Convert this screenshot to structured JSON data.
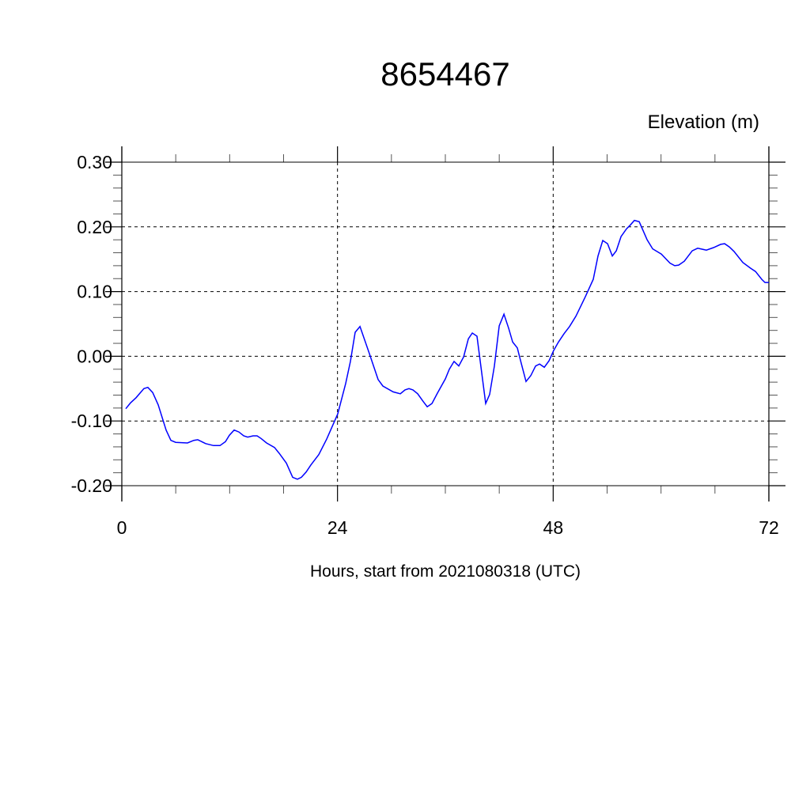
{
  "chart_data": {
    "type": "line",
    "title": "8654467",
    "ylabel": "Elevation (m)",
    "xlabel": "Hours, start from 2021080318 (UTC)",
    "xlim": [
      0,
      72
    ],
    "ylim": [
      -0.2,
      0.3
    ],
    "x_ticks": [
      0,
      24,
      48,
      72
    ],
    "x_tick_labels": [
      "0",
      "24",
      "48",
      "72"
    ],
    "x_minor_step": 6,
    "y_ticks": [
      0.3,
      0.2,
      0.1,
      0.0,
      -0.1,
      -0.2
    ],
    "y_tick_labels": [
      "0.30",
      "0.20",
      "0.10",
      "0.00",
      "-0.10",
      "-0.20"
    ],
    "y_minor_step": 0.02,
    "grid": true,
    "line_color": "#0000ff",
    "series": [
      {
        "name": "Elevation",
        "x": [
          0.44,
          0.97,
          1.58,
          2.46,
          2.9,
          3.43,
          4.05,
          4.93,
          5.46,
          5.99,
          7.31,
          8.01,
          8.45,
          9.33,
          10.21,
          10.92,
          11.53,
          11.97,
          12.5,
          13.03,
          13.56,
          14.0,
          14.61,
          15.05,
          15.49,
          16.11,
          16.99,
          17.52,
          18.31,
          19.01,
          19.54,
          19.98,
          20.51,
          21.04,
          21.92,
          22.8,
          24.03,
          24.91,
          25.44,
          25.97,
          26.5,
          27.55,
          28.52,
          29.05,
          30.19,
          30.99,
          31.51,
          31.95,
          32.39,
          32.92,
          33.54,
          33.98,
          34.51,
          35.12,
          36.0,
          36.44,
          36.97,
          37.5,
          38.03,
          38.56,
          39.0,
          39.52,
          40.49,
          40.93,
          41.46,
          41.99,
          42.52,
          43.05,
          43.49,
          44.01,
          44.45,
          44.98,
          45.51,
          46.04,
          46.48,
          47.01,
          47.54,
          48.06,
          48.59,
          49.21,
          49.82,
          50.53,
          51.58,
          52.46,
          52.99,
          53.52,
          54.05,
          54.58,
          55.02,
          55.55,
          56.16,
          56.6,
          57.04,
          57.57,
          58.45,
          59.07,
          60.04,
          61.0,
          61.53,
          61.97,
          62.59,
          63.47,
          64.08,
          65.05,
          65.85,
          66.64,
          67.08,
          67.61,
          68.13,
          69.1,
          69.98,
          70.51,
          71.21,
          71.57,
          72.0
        ],
        "y": [
          -0.081,
          -0.072,
          -0.064,
          -0.05,
          -0.048,
          -0.056,
          -0.075,
          -0.114,
          -0.13,
          -0.133,
          -0.134,
          -0.13,
          -0.129,
          -0.135,
          -0.138,
          -0.138,
          -0.132,
          -0.122,
          -0.114,
          -0.117,
          -0.123,
          -0.125,
          -0.123,
          -0.123,
          -0.127,
          -0.134,
          -0.141,
          -0.15,
          -0.165,
          -0.187,
          -0.19,
          -0.187,
          -0.179,
          -0.168,
          -0.152,
          -0.128,
          -0.089,
          -0.042,
          -0.008,
          0.037,
          0.046,
          0.004,
          -0.036,
          -0.046,
          -0.055,
          -0.058,
          -0.052,
          -0.05,
          -0.052,
          -0.058,
          -0.07,
          -0.078,
          -0.073,
          -0.057,
          -0.035,
          -0.02,
          -0.008,
          -0.015,
          -0.001,
          0.027,
          0.036,
          0.031,
          -0.073,
          -0.059,
          -0.015,
          0.047,
          0.065,
          0.043,
          0.022,
          0.013,
          -0.011,
          -0.039,
          -0.03,
          -0.015,
          -0.012,
          -0.017,
          -0.007,
          0.009,
          0.022,
          0.035,
          0.046,
          0.062,
          0.092,
          0.119,
          0.155,
          0.179,
          0.174,
          0.155,
          0.163,
          0.185,
          0.197,
          0.203,
          0.21,
          0.208,
          0.18,
          0.166,
          0.158,
          0.144,
          0.14,
          0.141,
          0.147,
          0.163,
          0.167,
          0.164,
          0.168,
          0.173,
          0.174,
          0.169,
          0.162,
          0.145,
          0.136,
          0.131,
          0.119,
          0.114,
          0.114
        ]
      }
    ]
  }
}
